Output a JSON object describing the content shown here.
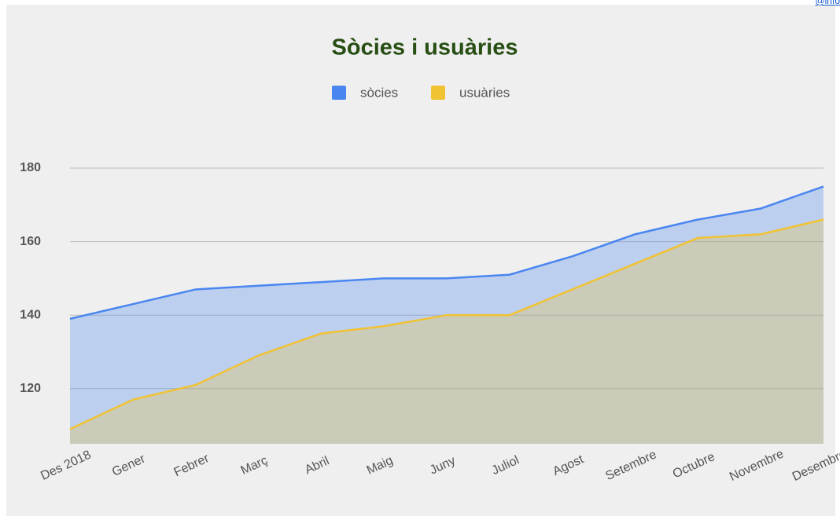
{
  "link_text": "info@",
  "chart_data": {
    "type": "area",
    "title": "Sòcies i usuàries",
    "categories": [
      "Des 2018",
      "Gener",
      "Febrer",
      "Març",
      "Abril",
      "Maig",
      "Juny",
      "Juliol",
      "Agost",
      "Setembre",
      "Octubre",
      "Novembre",
      "Desembre"
    ],
    "series": [
      {
        "name": "sòcies",
        "color": "#4a86f0",
        "values": [
          139,
          143,
          147,
          148,
          149,
          150,
          150,
          151,
          156,
          162,
          166,
          169,
          175
        ]
      },
      {
        "name": "usuàries",
        "color": "#f1c232",
        "values": [
          109,
          117,
          121,
          129,
          135,
          137,
          140,
          140,
          147,
          154,
          161,
          162,
          166
        ]
      }
    ],
    "ylim": [
      105,
      185
    ],
    "yticks": [
      120,
      140,
      160,
      180
    ],
    "grid": true,
    "legend": "top"
  }
}
